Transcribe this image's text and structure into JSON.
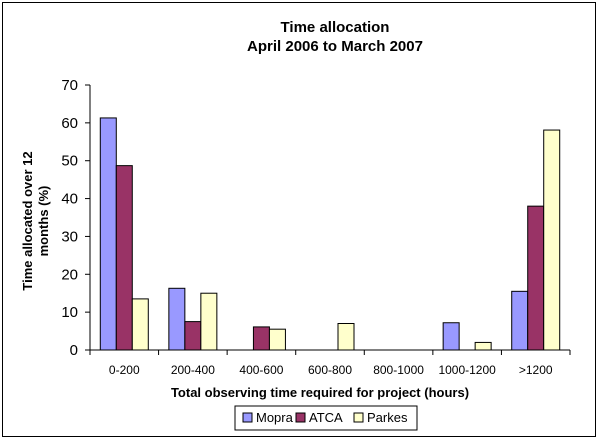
{
  "chart_data": {
    "type": "bar",
    "title": [
      "Time allocation",
      "April 2006 to March 2007"
    ],
    "xlabel": "Total observing time required for project (hours)",
    "ylabel": [
      "Time allocated over 12",
      "months (%)"
    ],
    "ylim": [
      0,
      70
    ],
    "yticks": [
      0,
      10,
      20,
      30,
      40,
      50,
      60,
      70
    ],
    "categories": [
      "0-200",
      "200-400",
      "400-600",
      "600-800",
      "800-1000",
      "1000-1200",
      ">1200"
    ],
    "series": [
      {
        "name": "Mopra",
        "color": "#9999FF",
        "values": [
          61.3,
          16.3,
          null,
          null,
          null,
          7.2,
          15.5
        ]
      },
      {
        "name": "ATCA",
        "color": "#993366",
        "values": [
          48.7,
          7.5,
          6.1,
          null,
          null,
          null,
          38.0
        ]
      },
      {
        "name": "Parkes",
        "color": "#FFFFCC",
        "values": [
          13.5,
          15.0,
          5.5,
          7.0,
          null,
          2.0,
          58.1
        ]
      }
    ],
    "legend_position": "bottom",
    "grid": false
  }
}
